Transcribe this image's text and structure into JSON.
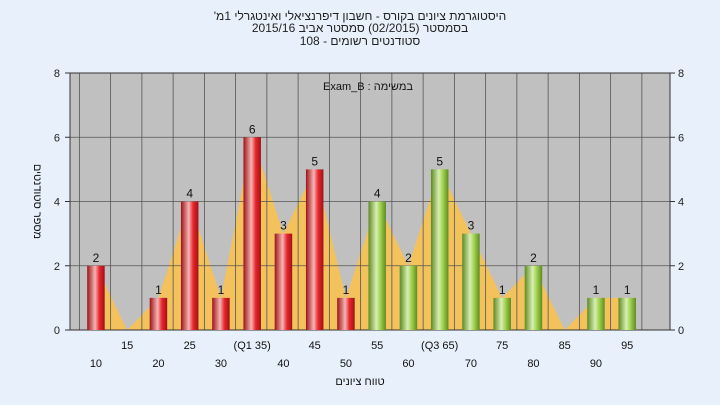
{
  "chart_data": {
    "type": "bar",
    "title_lines": [
      "היסטוגרמת ציונים בקורס - חשבון דיפרנציאלי ואינטגרלי 1מ'",
      "בסמסטר  (02/2015)  סמסטר אביב 2015/16",
      "סטודנטים רשומים - 108"
    ],
    "annotation": "במשימה : Exam_B",
    "xlabel": "טווח ציונים",
    "ylabel": "מספר סטודנטים",
    "ylim": [
      0,
      8
    ],
    "y_ticks": [
      0,
      2,
      4,
      6,
      8
    ],
    "grid": true,
    "x_tick_labels": [
      {
        "label": "10",
        "row": 2
      },
      {
        "label": "15",
        "row": 1
      },
      {
        "label": "20",
        "row": 2
      },
      {
        "label": "25",
        "row": 1
      },
      {
        "label": "30",
        "row": 2
      },
      {
        "label": "(Q1 35)",
        "row": 1
      },
      {
        "label": "40",
        "row": 2
      },
      {
        "label": "45",
        "row": 1
      },
      {
        "label": "50",
        "row": 2
      },
      {
        "label": "55",
        "row": 1
      },
      {
        "label": "60",
        "row": 2
      },
      {
        "label": "(Q3 65)",
        "row": 1
      },
      {
        "label": "70",
        "row": 2
      },
      {
        "label": "75",
        "row": 1
      },
      {
        "label": "80",
        "row": 2
      },
      {
        "label": "85",
        "row": 1
      },
      {
        "label": "90",
        "row": 2
      },
      {
        "label": "95",
        "row": 1
      }
    ],
    "bins": [
      10,
      15,
      20,
      25,
      30,
      35,
      40,
      45,
      50,
      55,
      60,
      65,
      70,
      75,
      80,
      85,
      90,
      95
    ],
    "values": [
      2,
      0,
      1,
      4,
      1,
      6,
      3,
      5,
      1,
      4,
      2,
      5,
      3,
      1,
      2,
      0,
      1,
      1
    ],
    "colors": {
      "fail": "#e8262b",
      "fail_light": "#f5b5b5",
      "fail_dark": "#9e1216",
      "pass": "#9ccf4a",
      "pass_light": "#d8efb2",
      "pass_dark": "#5e8a22",
      "area": "#fcc24a",
      "plot_bg": "#c0c0c0",
      "grid": "#555555"
    },
    "pass_threshold": 55
  }
}
